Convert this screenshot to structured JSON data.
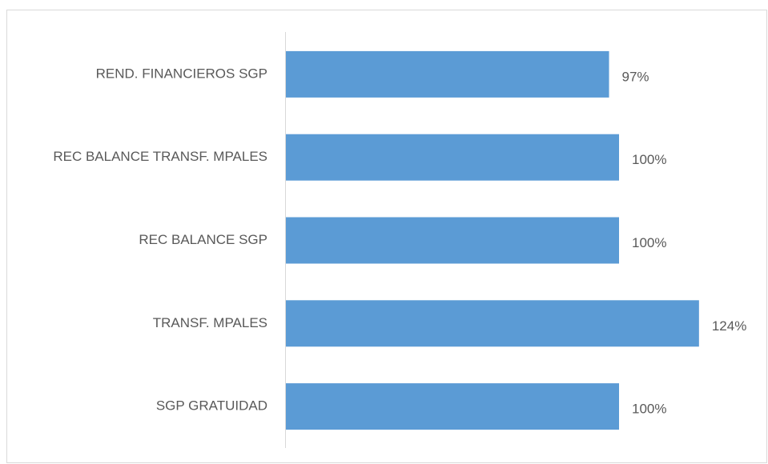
{
  "chart_data": {
    "type": "bar",
    "orientation": "horizontal",
    "categories": [
      "REND. FINANCIEROS SGP",
      "REC BALANCE TRANSF. MPALES",
      "REC BALANCE SGP",
      "TRANSF. MPALES",
      "SGP GRATUIDAD"
    ],
    "values": [
      97,
      100,
      100,
      124,
      100
    ],
    "value_labels": [
      "97%",
      "100%",
      "100%",
      "124%",
      "100%"
    ],
    "color": "#5b9bd5"
  }
}
